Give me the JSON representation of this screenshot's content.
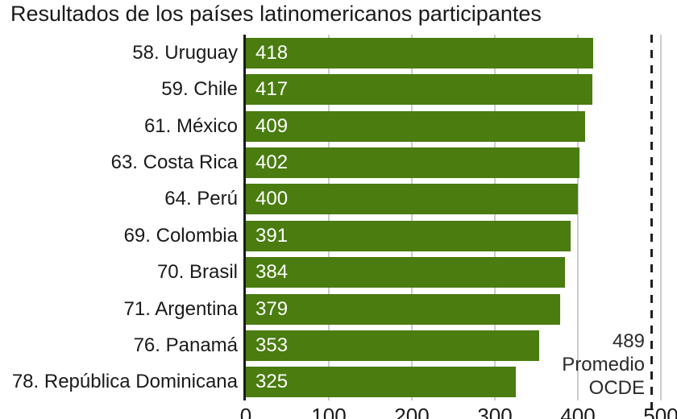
{
  "title": "Resultados de los países latinomericanos participantes",
  "colors": {
    "bar": "#4a7c10",
    "grid": "#cccccc",
    "axis": "#1a1a1a",
    "reference_line": "#1f1f1f",
    "label_text": "#1a1a1a",
    "bar_value_text": "#ffffff"
  },
  "chart_data": {
    "type": "bar",
    "orientation": "horizontal",
    "title": "Resultados de los países latinomericanos participantes",
    "categories": [
      "58. Uruguay",
      "59. Chile",
      "61. México",
      "63. Costa Rica",
      "64. Perú",
      "69. Colombia",
      "70. Brasil",
      "71. Argentina",
      "76. Panamá",
      "78. República Dominicana"
    ],
    "values": [
      418,
      417,
      409,
      402,
      400,
      391,
      384,
      379,
      353,
      325
    ],
    "xlim": [
      0,
      500
    ],
    "x_ticks": [
      0,
      100,
      200,
      300,
      400,
      500
    ],
    "grid": "vertical-gridlines-on",
    "legend": "none",
    "reference_line": {
      "value": 489,
      "label_lines": [
        "489",
        "Promedio",
        "OCDE"
      ]
    }
  }
}
